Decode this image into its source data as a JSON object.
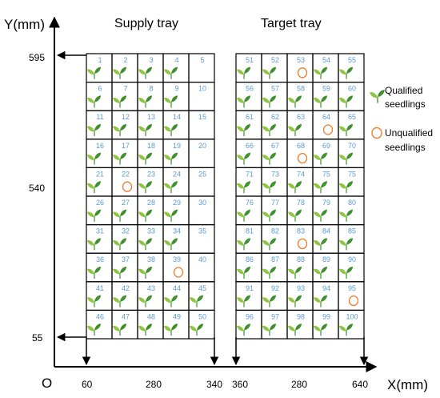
{
  "axis": {
    "y_title": "Y(mm)",
    "x_title": "X(mm)",
    "origin": "O",
    "y_ticks": [
      "595",
      "540",
      "55"
    ],
    "x_ticks": [
      "60",
      "280",
      "340",
      "360",
      "280",
      "640"
    ]
  },
  "supply_tray": {
    "title": "Supply tray",
    "first": 1,
    "missing": [
      5,
      10,
      15,
      20,
      25,
      30,
      35,
      40
    ],
    "unqualified": [
      22,
      39
    ]
  },
  "target_tray": {
    "title": "Target tray",
    "labels": [
      "51",
      "52",
      "53",
      "54",
      "55",
      "56",
      "57",
      "58",
      "59",
      "60",
      "61",
      "62",
      "63",
      "64",
      "65",
      "66",
      "67",
      "68",
      "69",
      "70",
      "71",
      "73",
      "74",
      "75",
      "75",
      "76",
      "77",
      "78",
      "79",
      "80",
      "81",
      "82",
      "83",
      "84",
      "85",
      "86",
      "87",
      "88",
      "89",
      "90",
      "91",
      "92",
      "93",
      "94",
      "95",
      "96",
      "97",
      "98",
      "99",
      "100"
    ],
    "unqualified": [
      53,
      64,
      68,
      83,
      95
    ]
  },
  "legend": {
    "qualified": [
      "Qualified",
      "seedlings"
    ],
    "unqualified": [
      "Unqualified",
      "seedlings"
    ]
  },
  "colors": {
    "number": "#5b9bd5",
    "leaf": "#8dc63f",
    "leaf_dark": "#3f8f2f",
    "circle": "#ed7d31",
    "line": "#000000"
  }
}
